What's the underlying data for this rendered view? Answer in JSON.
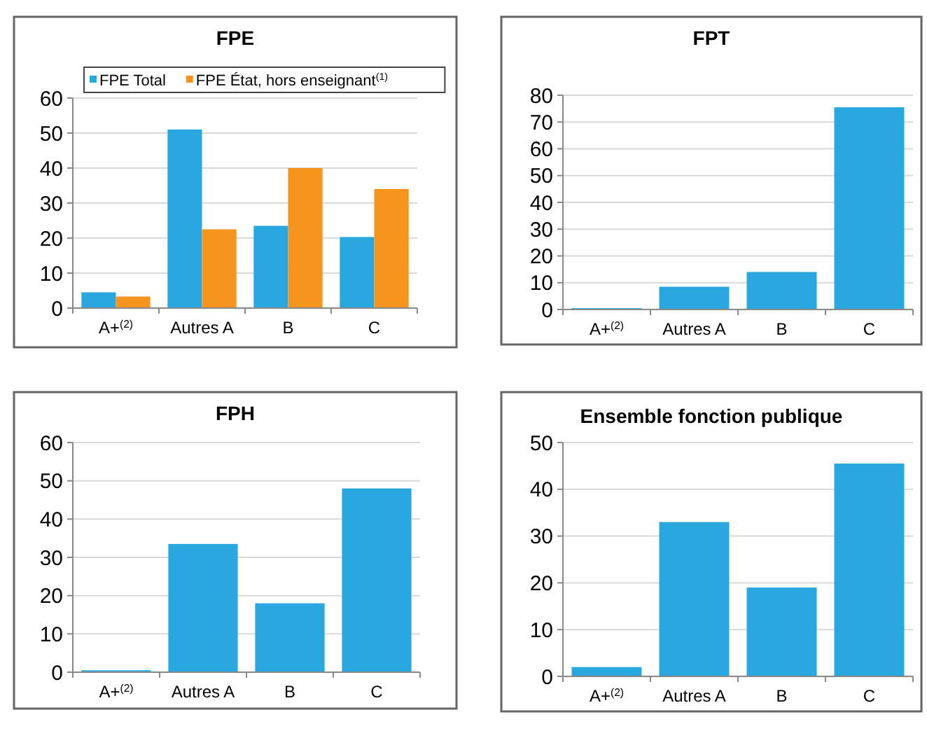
{
  "chart_data": [
    {
      "type": "bar",
      "title": "FPE",
      "categories": [
        "A+$^{(2)}$",
        "Autres A",
        "B",
        "C"
      ],
      "series": [
        {
          "name": "FPE Total",
          "color": "#29a8e0",
          "values": [
            4.5,
            51,
            23.5,
            20.3
          ]
        },
        {
          "name": "FPE État, hors enseignant$^{(1)}$",
          "color": "#f7941d",
          "values": [
            3.3,
            22.5,
            40,
            34
          ]
        }
      ],
      "ylim": [
        0,
        60
      ],
      "yticks": [
        0,
        10,
        20,
        30,
        40,
        50,
        60
      ],
      "grid": "y",
      "legend": "top"
    },
    {
      "type": "bar",
      "title": "FPT",
      "categories": [
        "A+$^{(2)}$",
        "Autres A",
        "B",
        "C"
      ],
      "values": [
        0.5,
        8.5,
        14,
        75.5
      ],
      "color": "#29a8e0",
      "ylim": [
        0,
        80
      ],
      "yticks": [
        0,
        10,
        20,
        30,
        40,
        50,
        60,
        70,
        80
      ],
      "grid": "y"
    },
    {
      "type": "bar",
      "title": "FPH",
      "categories": [
        "A+$^{(2)}$",
        "Autres A",
        "B",
        "C"
      ],
      "values": [
        0.5,
        33.5,
        18,
        48
      ],
      "color": "#29a8e0",
      "ylim": [
        0,
        60
      ],
      "yticks": [
        0,
        10,
        20,
        30,
        40,
        50,
        60
      ],
      "grid": "y"
    },
    {
      "type": "bar",
      "title": "Ensemble fonction publique",
      "categories": [
        "A+$^{(2)}$",
        "Autres A",
        "B",
        "C"
      ],
      "values": [
        2,
        33,
        19,
        45.5
      ],
      "color": "#29a8e0",
      "ylim": [
        0,
        50
      ],
      "yticks": [
        0,
        10,
        20,
        30,
        40,
        50
      ],
      "grid": "y"
    }
  ]
}
